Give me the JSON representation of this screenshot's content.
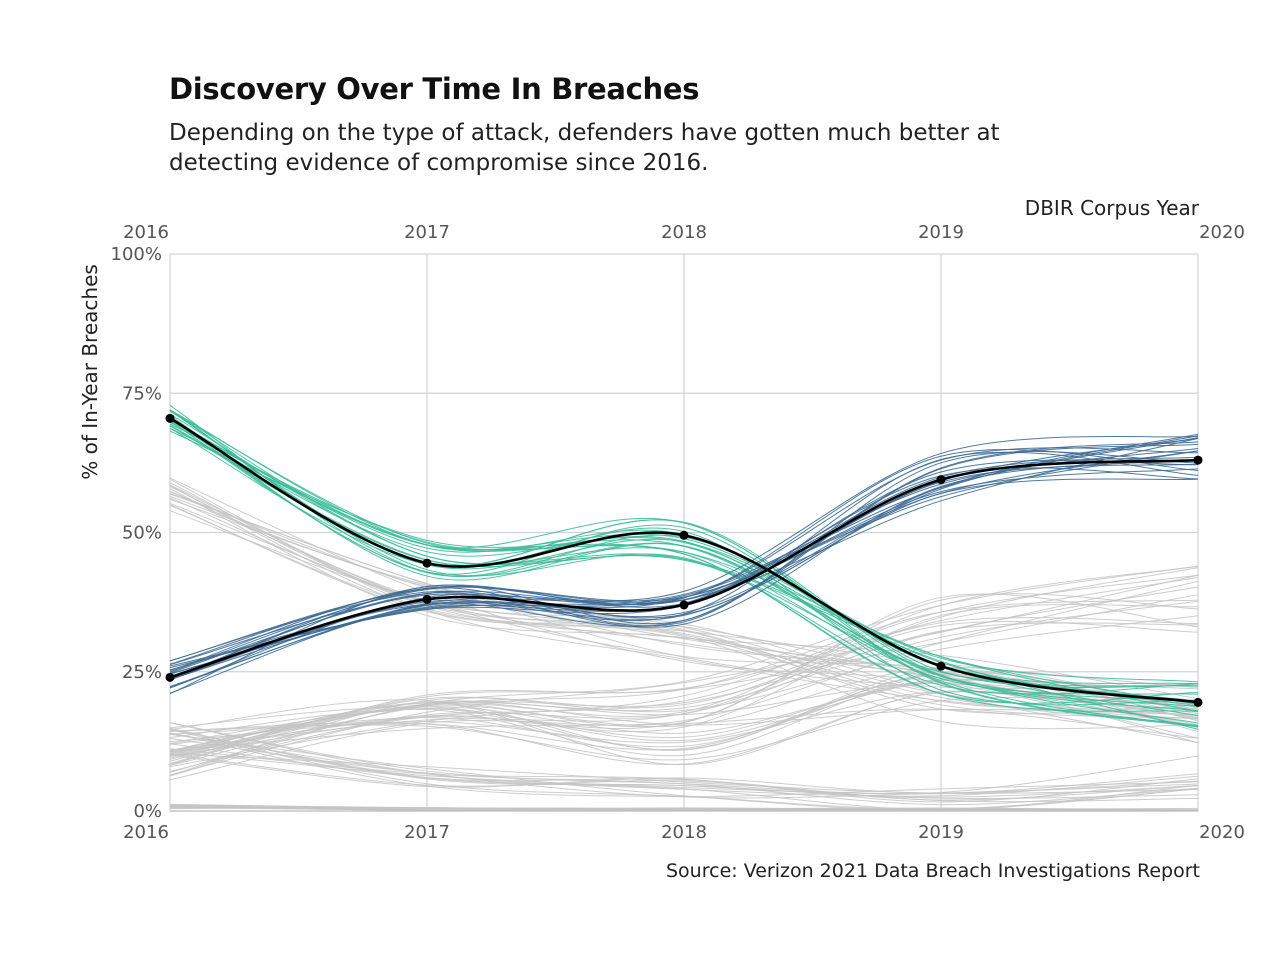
{
  "title": "Discovery Over Time In Breaches",
  "subtitle": "Depending on the type of attack, defenders have gotten much better at detecting evidence of compromise since 2016.",
  "caption": "Source: Verizon 2021 Data Breach Investigations Report",
  "chart_data": {
    "type": "line",
    "title": "Discovery Over Time In Breaches",
    "xlabel": "DBIR Corpus Year",
    "ylabel": "% of In-Year Breaches",
    "x": [
      2016,
      2017,
      2018,
      2019,
      2020
    ],
    "x_tick_labels": [
      "2016",
      "2017",
      "2018",
      "2019",
      "2020"
    ],
    "y_ticks": [
      0,
      25,
      50,
      75,
      100
    ],
    "y_tick_labels": [
      "0%",
      "25%",
      "50%",
      "75%",
      "100%"
    ],
    "ylim": [
      0,
      100
    ],
    "grid": true,
    "x_axis_labels_top_and_bottom": true,
    "colors": {
      "teal": "#3dbd9a",
      "blue": "#3e6a94",
      "grey": "#c4c4c4",
      "median": "#000000"
    },
    "series": [
      {
        "values": [
          70.5,
          44.5,
          49.5,
          26,
          19.5
        ],
        "color": "median",
        "markers": true
      },
      {
        "values": [
          24,
          38,
          37,
          59.5,
          63
        ],
        "color": "median",
        "markers": true
      }
    ],
    "simulation_bands": [
      {
        "color": "teal",
        "count": 22,
        "center": [
          70.5,
          45.5,
          48.5,
          24.5,
          19
        ],
        "spread": [
          2.5,
          3.5,
          3.5,
          3.5,
          4.5
        ]
      },
      {
        "color": "blue",
        "count": 22,
        "center": [
          24,
          38,
          36.5,
          60,
          63
        ],
        "spread": [
          3,
          2.5,
          3,
          4.5,
          5
        ]
      },
      {
        "color": "grey",
        "count": 18,
        "center": [
          57,
          38,
          30,
          22,
          18
        ],
        "spread": [
          4,
          3,
          4,
          6,
          6
        ]
      },
      {
        "color": "grey",
        "count": 18,
        "center": [
          8,
          18,
          20,
          34,
          38
        ],
        "spread": [
          3,
          3,
          5,
          5,
          6
        ]
      },
      {
        "color": "grey",
        "count": 16,
        "center": [
          12,
          17,
          13,
          22,
          16
        ],
        "spread": [
          3,
          3,
          5,
          4,
          4
        ]
      },
      {
        "color": "grey",
        "count": 16,
        "center": [
          13,
          6,
          4,
          2,
          6
        ],
        "spread": [
          3,
          2,
          2,
          2,
          4
        ]
      },
      {
        "color": "grey",
        "count": 12,
        "center": [
          0.8,
          0.4,
          0.3,
          0.3,
          0.2
        ],
        "spread": [
          0.4,
          0.3,
          0.3,
          0.3,
          0.3
        ]
      }
    ]
  }
}
